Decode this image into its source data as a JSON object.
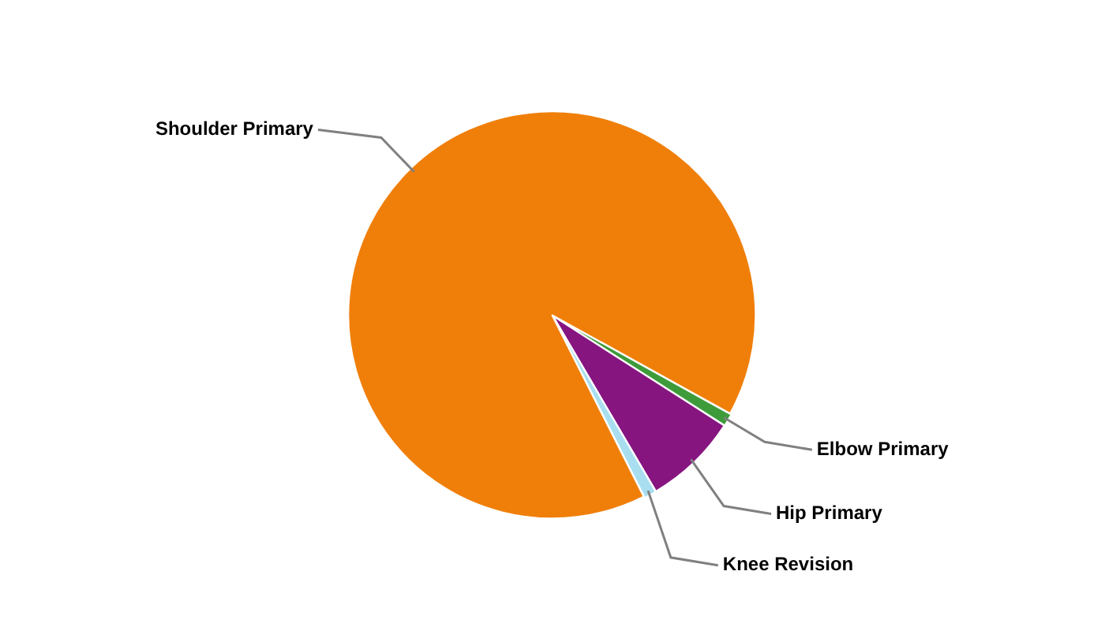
{
  "chart_data": {
    "type": "pie",
    "categories": [
      "Elbow Primary",
      "Hip Primary",
      "Knee Revision",
      "Shoulder Primary"
    ],
    "values": [
      1,
      7.5,
      1,
      90.5
    ],
    "colors": [
      "#3e9b3a",
      "#861580",
      "#a8def0",
      "#f07f0a"
    ],
    "legend": false
  }
}
